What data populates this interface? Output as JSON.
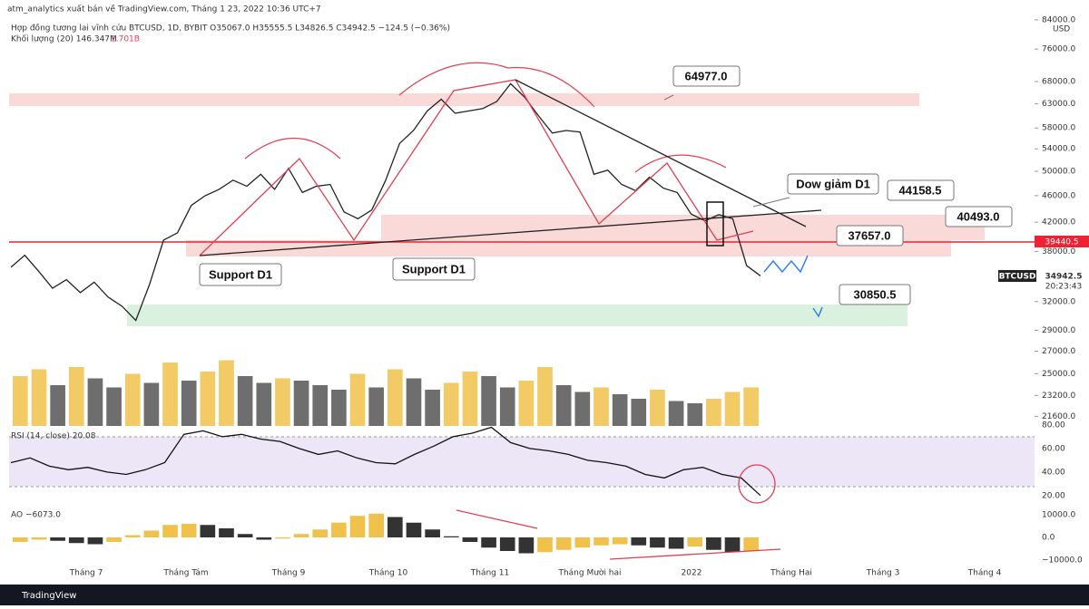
{
  "header": {
    "publisher": "atm_analytics xuất bản về TradingView.com, Tháng 1 23, 2022 10:36 UTC+7",
    "symbol_line": "Hợp đồng tương lai vĩnh cửu BTCUSD, 1D, BYBIT  O35067.0  H35555.5  L34826.5  C34942.5  −124.5 (−0.36%)",
    "volume_label": "Khối lượng (20)  146.347M",
    "volume_value": "1.701B"
  },
  "chart_data": {
    "type": "line",
    "currency": "USD",
    "log_scale": true,
    "ylim": [
      20900,
      84500
    ],
    "yticks": [
      {
        "value": 84000,
        "label": "84000.0"
      },
      {
        "value": 76000,
        "label": "76000.0"
      },
      {
        "value": 68000,
        "label": "68000.0"
      },
      {
        "value": 63000,
        "label": "63000.0"
      },
      {
        "value": 58000,
        "label": "58000.0"
      },
      {
        "value": 54000,
        "label": "54000.0"
      },
      {
        "value": 50000,
        "label": "50000.0"
      },
      {
        "value": 46000,
        "label": "46000.0"
      },
      {
        "value": 42000,
        "label": "42000.0"
      },
      {
        "value": 38000,
        "label": "38000.0"
      },
      {
        "value": 32000,
        "label": "32000.0"
      },
      {
        "value": 29000,
        "label": "29000.0"
      },
      {
        "value": 27000,
        "label": "27000.0"
      },
      {
        "value": 25000,
        "label": "25000.0"
      },
      {
        "value": 23200,
        "label": "23200.0"
      },
      {
        "value": 21600,
        "label": "21600.0"
      }
    ],
    "xlabels": [
      "Tháng 7",
      "Tháng Tám",
      "Tháng 9",
      "Tháng 10",
      "Tháng 11",
      "Tháng Mười hai",
      "2022",
      "Tháng Hai",
      "Tháng 3",
      "Tháng 4"
    ],
    "series": [
      {
        "name": "BTCUSD",
        "color": "#222222",
        "values": [
          36000,
          37500,
          35500,
          33500,
          34500,
          33000,
          34200,
          32500,
          31500,
          30000,
          34000,
          39500,
          40500,
          44500,
          46000,
          47000,
          48500,
          47500,
          49500,
          47000,
          50500,
          46500,
          47500,
          47800,
          43500,
          42500,
          43800,
          48500,
          55000,
          57500,
          61500,
          64000,
          61000,
          61500,
          62000,
          63500,
          67500,
          64500,
          60500,
          57000,
          57500,
          57200,
          49500,
          50200,
          47800,
          46800,
          49000,
          47200,
          46500,
          43200,
          42200,
          43100,
          42500,
          36200,
          34942.5
        ]
      }
    ],
    "last_price": {
      "name": "BTCUSD",
      "value": {
        "value": 34942.5,
        "label": "34942.5"
      },
      "countdown": "20:23:43"
    },
    "level_label": {
      "value": 39440.5,
      "label": "39440.5"
    },
    "annotations": [
      "64977.0",
      "44158.5",
      "40493.0",
      "37657.0",
      "30850.5",
      "Dow giảm D1",
      "Support D1",
      "Support D1"
    ]
  },
  "volume": {
    "type": "bar",
    "vlim": [
      0,
      3.8
    ],
    "up_color": "#f0c14b",
    "down_color": "#555555",
    "values": [
      2.2,
      2.5,
      1.8,
      2.6,
      2.1,
      1.7,
      2.3,
      1.9,
      2.8,
      2.0,
      2.4,
      2.9,
      2.2,
      1.9,
      2.1,
      2.0,
      1.8,
      1.6,
      2.3,
      1.7,
      2.5,
      2.1,
      1.6,
      1.9,
      2.4,
      2.2,
      1.7,
      2.0,
      2.6,
      1.8,
      1.5,
      1.7,
      1.4,
      1.2,
      1.6,
      1.1,
      1.0,
      1.2,
      1.5,
      1.701
    ]
  },
  "rsi": {
    "type": "line",
    "label": "RSI (14, close)  20.08",
    "color": "#111111",
    "ylim": [
      13,
      83
    ],
    "yticks": [
      {
        "value": 80,
        "label": "80.00"
      },
      {
        "value": 60,
        "label": "60.00"
      },
      {
        "value": 40,
        "label": "40.00"
      },
      {
        "value": 20,
        "label": "20.00"
      }
    ],
    "values": [
      48,
      52,
      45,
      42,
      44,
      40,
      38,
      42,
      48,
      72,
      75,
      70,
      72,
      68,
      66,
      60,
      55,
      58,
      52,
      48,
      47,
      55,
      62,
      70,
      73,
      78,
      65,
      60,
      58,
      55,
      50,
      48,
      45,
      38,
      35,
      42,
      44,
      38,
      35,
      20.08
    ]
  },
  "ao": {
    "type": "bar",
    "label": "AO  −6073.0",
    "ylim": [
      -12000,
      12000
    ],
    "yticks": [
      {
        "value": 10000,
        "label": "10000.0"
      },
      {
        "value": 0,
        "label": "0.0"
      },
      {
        "value": -10000,
        "label": "−10000.0"
      }
    ],
    "values": [
      -2000,
      -1000,
      -1500,
      -2500,
      -3000,
      -2000,
      1000,
      3000,
      5500,
      6000,
      5500,
      4000,
      1500,
      -1000,
      -500,
      1500,
      3500,
      6500,
      9500,
      10500,
      9000,
      6500,
      3500,
      500,
      -2000,
      -4500,
      -6000,
      -7000,
      -6500,
      -5500,
      -4500,
      -3500,
      -3000,
      -3500,
      -4500,
      -5000,
      -4000,
      -5500,
      -6500,
      -6073
    ]
  },
  "footer": {
    "brand": "TradingView"
  }
}
